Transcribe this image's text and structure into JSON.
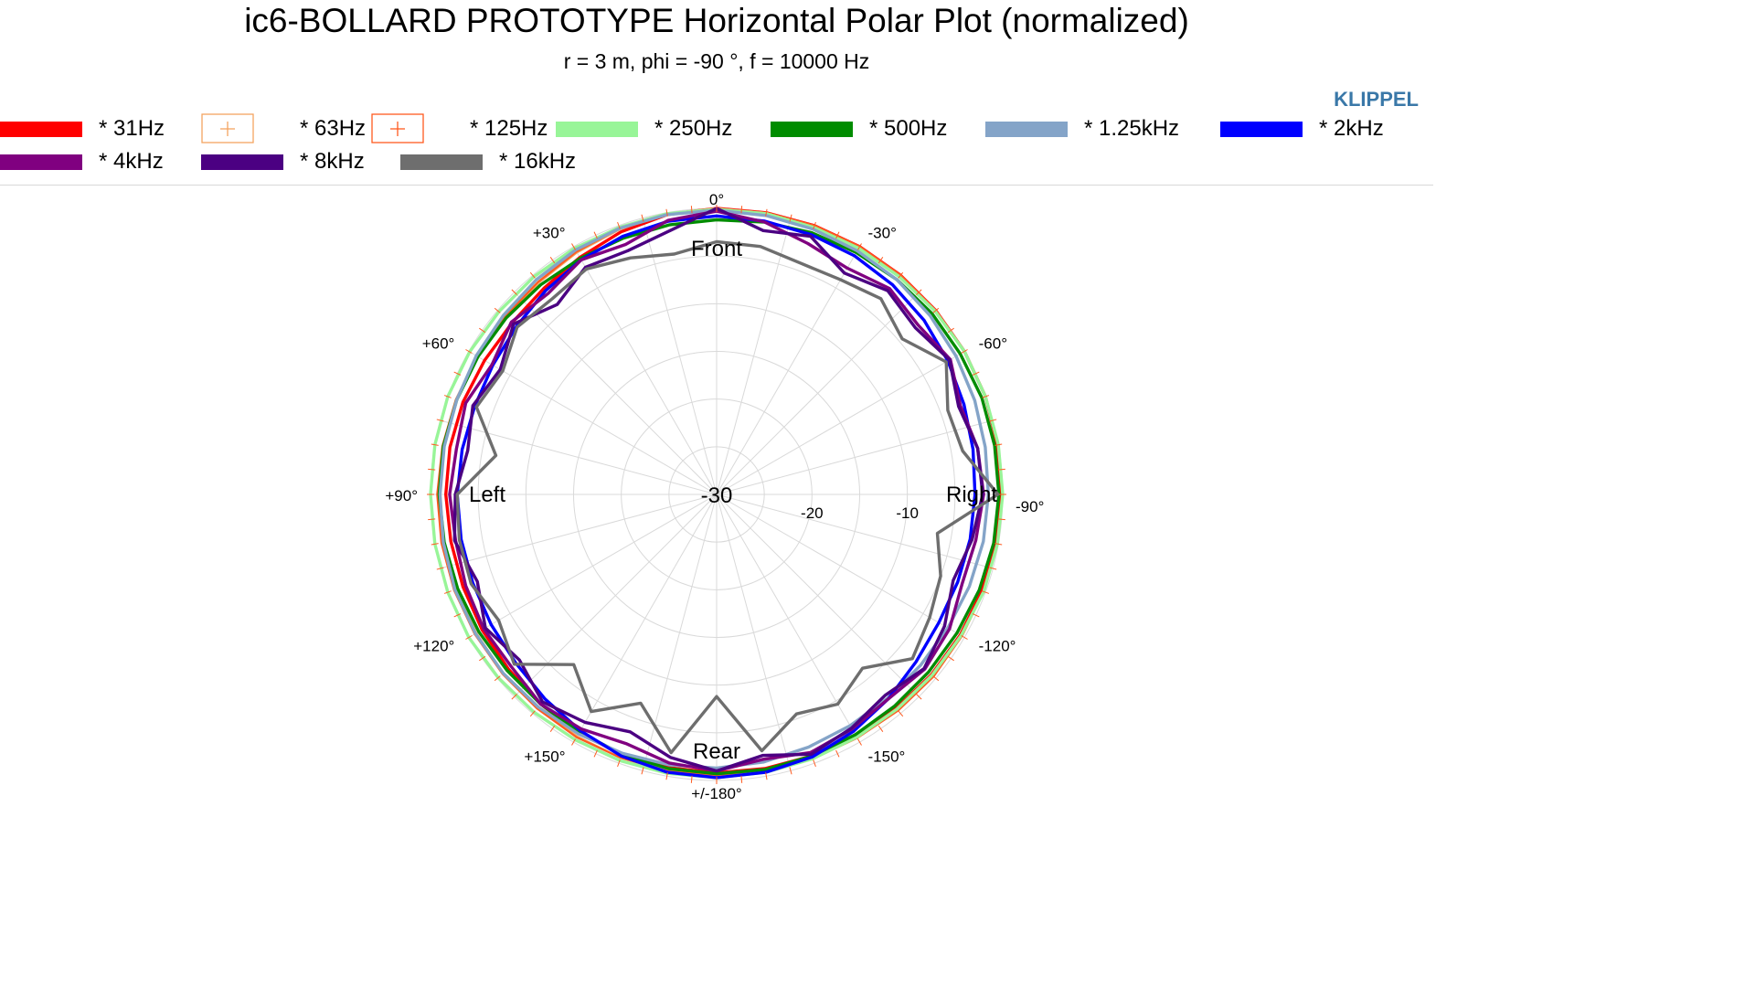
{
  "header": {
    "title": "ic6-BOLLARD PROTOTYPE Horizontal Polar Plot (normalized)",
    "subtitle": "r = 3 m, phi = -90 °, f = 10000 Hz",
    "brand": "KLIPPEL"
  },
  "legend": {
    "items": [
      {
        "label": "* 31Hz",
        "color": "#ff0000",
        "style": "line"
      },
      {
        "label": "* 63Hz",
        "color": "#f4a460",
        "style": "box-cross"
      },
      {
        "label": "* 125Hz",
        "color": "#ff5a1f",
        "style": "box-cross"
      },
      {
        "label": "* 250Hz",
        "color": "#98f598",
        "style": "line"
      },
      {
        "label": "* 500Hz",
        "color": "#008c00",
        "style": "line"
      },
      {
        "label": "* 1.25kHz",
        "color": "#84a4c8",
        "style": "line"
      },
      {
        "label": "* 2kHz",
        "color": "#0000ff",
        "style": "line"
      },
      {
        "label": "* 4kHz",
        "color": "#800080",
        "style": "line"
      },
      {
        "label": "* 8kHz",
        "color": "#4b0082",
        "style": "line"
      },
      {
        "label": "* 16kHz",
        "color": "#6e6e6e",
        "style": "line"
      }
    ]
  },
  "chart_data": {
    "type": "polar-line",
    "title": "ic6-BOLLARD PROTOTYPE Horizontal Polar Plot (normalized)",
    "subtitle": "r = 3 m, phi = -90 °, f = 10000 Hz",
    "r_range": [
      -30,
      0
    ],
    "r_ticks": [
      -30,
      -20,
      -10
    ],
    "r_tick_labels": [
      "-30",
      "-20",
      "-10"
    ],
    "angle_ticks": [
      {
        "angle": 0,
        "label": "0°"
      },
      {
        "angle": 30,
        "label": "+30°"
      },
      {
        "angle": -30,
        "label": "-30°"
      },
      {
        "angle": 60,
        "label": "+60°"
      },
      {
        "angle": -60,
        "label": "-60°"
      },
      {
        "angle": 90,
        "label": "+90°"
      },
      {
        "angle": -90,
        "label": "-90°"
      },
      {
        "angle": 120,
        "label": "+120°"
      },
      {
        "angle": -120,
        "label": "-120°"
      },
      {
        "angle": 150,
        "label": "+150°"
      },
      {
        "angle": -150,
        "label": "-150°"
      },
      {
        "angle": 180,
        "label": "+/-180°"
      }
    ],
    "direction_labels": {
      "front": "Front",
      "rear": "Rear",
      "left": "Left",
      "right": "Right"
    },
    "angles": [
      0,
      -10,
      -20,
      -30,
      -40,
      -50,
      -60,
      -70,
      -80,
      -90,
      -100,
      -110,
      -120,
      -130,
      -140,
      -150,
      -160,
      -170,
      180,
      170,
      160,
      150,
      140,
      130,
      120,
      110,
      100,
      90,
      80,
      70,
      60,
      50,
      40,
      30,
      20,
      10
    ],
    "series": [
      {
        "name": "* 31Hz",
        "color": "#ff0000",
        "values": [
          0,
          0,
          0,
          0,
          0,
          0,
          0,
          0,
          -0.1,
          -0.2,
          -0.3,
          -0.4,
          -0.5,
          -0.6,
          -0.7,
          -0.8,
          -0.8,
          -0.8,
          -0.8,
          -0.9,
          -1.0,
          -1.1,
          -1.3,
          -1.5,
          -1.6,
          -1.7,
          -1.7,
          -1.6,
          -1.6,
          -1.7,
          -1.9,
          -2.0,
          -1.8,
          -1.3,
          -0.7,
          -0.2
        ]
      },
      {
        "name": "* 63Hz",
        "color": "#f4a460",
        "values": [
          0,
          0,
          0,
          0,
          0,
          0,
          0,
          0,
          0,
          0,
          -0.1,
          -0.2,
          -0.3,
          -0.4,
          -0.5,
          -0.6,
          -0.6,
          -0.6,
          -0.6,
          -0.6,
          -0.6,
          -0.7,
          -0.8,
          -0.8,
          -0.9,
          -0.9,
          -0.8,
          -0.8,
          -0.9,
          -1.0,
          -1.1,
          -1.1,
          -1.0,
          -0.7,
          -0.4,
          -0.1
        ]
      },
      {
        "name": "* 125Hz",
        "color": "#ff5a1f",
        "values": [
          0,
          0,
          0,
          0,
          0,
          0,
          0,
          0,
          0,
          0,
          -0.1,
          -0.2,
          -0.3,
          -0.3,
          -0.4,
          -0.5,
          -0.5,
          -0.5,
          -0.5,
          -0.5,
          -0.6,
          -0.6,
          -0.7,
          -0.7,
          -0.7,
          -0.7,
          -0.7,
          -0.7,
          -0.8,
          -0.9,
          -1.0,
          -1.0,
          -0.9,
          -0.6,
          -0.3,
          -0.1
        ]
      },
      {
        "name": "* 250Hz",
        "color": "#98f598",
        "values": [
          -0.1,
          -0.1,
          -0.2,
          -0.2,
          -0.2,
          -0.1,
          0,
          0,
          0,
          0,
          -0.1,
          -0.2,
          -0.4,
          -0.5,
          -0.6,
          -0.6,
          -0.5,
          -0.4,
          -0.3,
          -0.3,
          -0.3,
          -0.3,
          -0.2,
          -0.1,
          0,
          0,
          0,
          0,
          0,
          0,
          -0.1,
          -0.2,
          -0.2,
          -0.2,
          -0.2,
          -0.1
        ]
      },
      {
        "name": "* 500Hz",
        "color": "#008c00",
        "values": [
          -1.2,
          -1.0,
          -0.8,
          -0.7,
          -0.6,
          -0.5,
          -0.5,
          -0.4,
          -0.4,
          -0.4,
          -0.5,
          -0.7,
          -0.9,
          -1.0,
          -1.0,
          -0.9,
          -0.8,
          -0.7,
          -0.7,
          -0.8,
          -1.0,
          -1.2,
          -1.3,
          -1.3,
          -1.2,
          -1.1,
          -1.0,
          -0.9,
          -0.9,
          -1.0,
          -1.1,
          -1.2,
          -1.3,
          -1.4,
          -1.4,
          -1.3
        ]
      },
      {
        "name": "* 1.25kHz",
        "color": "#84a4c8",
        "values": [
          -0.2,
          -0.3,
          -0.4,
          -0.5,
          -0.6,
          -0.8,
          -1.0,
          -1.2,
          -1.4,
          -1.5,
          -1.6,
          -1.8,
          -2.0,
          -2.1,
          -2.1,
          -2.0,
          -1.8,
          -1.5,
          -1.3,
          -1.2,
          -1.1,
          -1.0,
          -0.9,
          -0.8,
          -0.8,
          -0.8,
          -0.9,
          -1.0,
          -1.0,
          -1.0,
          -0.9,
          -0.8,
          -0.6,
          -0.4,
          -0.3,
          -0.2
        ]
      },
      {
        "name": "* 2kHz",
        "color": "#0000ff",
        "values": [
          -0.8,
          -0.9,
          -1.0,
          -1.1,
          -1.3,
          -1.6,
          -2.0,
          -2.4,
          -2.7,
          -2.9,
          -3.0,
          -3.1,
          -3.1,
          -2.7,
          -2.0,
          -1.3,
          -0.7,
          -0.4,
          -0.3,
          -0.4,
          -0.8,
          -1.4,
          -2.0,
          -2.5,
          -2.7,
          -2.8,
          -2.8,
          -2.8,
          -2.9,
          -3.0,
          -2.9,
          -2.6,
          -2.1,
          -1.6,
          -1.2,
          -0.9
        ]
      },
      {
        "name": "* 4kHz",
        "color": "#800080",
        "values": [
          -0.3,
          -1.0,
          -2.0,
          -2.6,
          -1.8,
          -2.4,
          -1.7,
          -2.8,
          -2.2,
          -2.0,
          -2.4,
          -2.6,
          -1.8,
          -1.5,
          -2.0,
          -1.6,
          -1.2,
          -1.8,
          -1.0,
          -1.4,
          -2.2,
          -1.6,
          -1.3,
          -1.9,
          -1.8,
          -2.0,
          -2.2,
          -2.0,
          -2.3,
          -2.0,
          -2.8,
          -1.9,
          -2.5,
          -1.6,
          -2.1,
          -0.8
        ]
      },
      {
        "name": "* 8kHz",
        "color": "#4b0082",
        "values": [
          0,
          -1.9,
          -1.2,
          -3.2,
          -2.1,
          -2.8,
          -1.8,
          -3.0,
          -2.2,
          -2.1,
          -2.8,
          -3.6,
          -2.4,
          -1.6,
          -2.5,
          -1.7,
          -1.0,
          -2.2,
          -1.0,
          -2.0,
          -3.5,
          -2.4,
          -1.6,
          -3.0,
          -2.0,
          -3.3,
          -2.1,
          -2.6,
          -3.5,
          -2.8,
          -3.8,
          -2.2,
          -4.0,
          -2.5,
          -2.8,
          -1.9
        ]
      },
      {
        "name": "* 16kHz",
        "color": "#6e6e6e",
        "values": [
          -3.5,
          -3.6,
          -4.2,
          -4.0,
          -3.2,
          -4.6,
          -2.2,
          -4.2,
          -3.8,
          -0.5,
          -6.5,
          -5.0,
          -4.2,
          -3.2,
          -6.2,
          -4.6,
          -5.5,
          -2.7,
          -8.8,
          -2.5,
          -6.7,
          -3.7,
          -6.7,
          -2.3,
          -3.6,
          -2.6,
          -2.6,
          -2.8,
          -6.5,
          -3.2,
          -4.1,
          -2.7,
          -3.2,
          -2.7,
          -3.6,
          -4.4
        ]
      }
    ]
  }
}
